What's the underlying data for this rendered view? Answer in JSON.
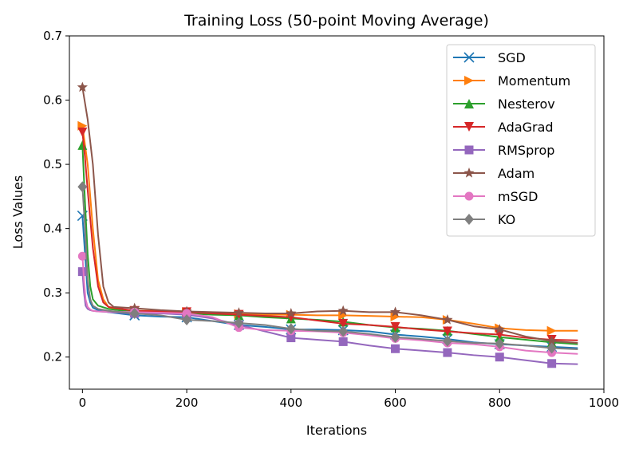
{
  "chart_data": {
    "type": "line",
    "title": "Training Loss (50-point Moving Average)",
    "xlabel": "Iterations",
    "ylabel": "Loss Values",
    "xlim": [
      -25,
      1000
    ],
    "ylim": [
      0.15,
      0.7
    ],
    "xticks": [
      0,
      200,
      400,
      600,
      800,
      1000
    ],
    "yticks": [
      0.2,
      0.3,
      0.4,
      0.5,
      0.6,
      0.7
    ],
    "xtick_labels": [
      "0",
      "200",
      "400",
      "600",
      "800",
      "1000"
    ],
    "ytick_labels": [
      "0.2",
      "0.3",
      "0.4",
      "0.5",
      "0.6",
      "0.7"
    ],
    "grid": false,
    "legend_position": "top-right",
    "marker_every": 100,
    "series": [
      {
        "name": "SGD",
        "color": "#1f77b4",
        "marker": "x",
        "x": [
          0,
          5,
          10,
          15,
          20,
          30,
          50,
          100,
          150,
          200,
          250,
          300,
          350,
          400,
          450,
          500,
          550,
          600,
          650,
          700,
          750,
          800,
          850,
          900,
          950
        ],
        "y": [
          0.42,
          0.36,
          0.3,
          0.285,
          0.277,
          0.273,
          0.27,
          0.265,
          0.263,
          0.262,
          0.256,
          0.25,
          0.247,
          0.243,
          0.243,
          0.242,
          0.24,
          0.235,
          0.232,
          0.228,
          0.223,
          0.22,
          0.218,
          0.216,
          0.214
        ]
      },
      {
        "name": "Momentum",
        "color": "#ff7f0e",
        "marker": "triangle-right",
        "x": [
          0,
          10,
          20,
          30,
          40,
          50,
          60,
          100,
          150,
          200,
          250,
          300,
          350,
          400,
          450,
          500,
          550,
          600,
          650,
          700,
          750,
          800,
          850,
          900,
          950
        ],
        "y": [
          0.56,
          0.5,
          0.4,
          0.32,
          0.29,
          0.278,
          0.275,
          0.272,
          0.272,
          0.27,
          0.268,
          0.267,
          0.266,
          0.266,
          0.265,
          0.265,
          0.264,
          0.263,
          0.262,
          0.258,
          0.252,
          0.245,
          0.242,
          0.241,
          0.241
        ]
      },
      {
        "name": "Nesterov",
        "color": "#2ca02c",
        "marker": "triangle-up",
        "x": [
          0,
          5,
          10,
          15,
          20,
          30,
          50,
          100,
          150,
          200,
          250,
          300,
          350,
          400,
          450,
          500,
          550,
          600,
          650,
          700,
          750,
          800,
          850,
          900,
          950
        ],
        "y": [
          0.53,
          0.44,
          0.36,
          0.31,
          0.29,
          0.28,
          0.275,
          0.27,
          0.269,
          0.268,
          0.266,
          0.265,
          0.262,
          0.26,
          0.258,
          0.255,
          0.25,
          0.246,
          0.244,
          0.241,
          0.236,
          0.231,
          0.227,
          0.223,
          0.22
        ]
      },
      {
        "name": "AdaGrad",
        "color": "#d62728",
        "marker": "triangle-down",
        "x": [
          0,
          5,
          10,
          20,
          30,
          40,
          50,
          100,
          150,
          200,
          250,
          300,
          350,
          400,
          450,
          500,
          550,
          600,
          650,
          700,
          750,
          800,
          850,
          900,
          950
        ],
        "y": [
          0.55,
          0.51,
          0.46,
          0.37,
          0.31,
          0.285,
          0.278,
          0.272,
          0.271,
          0.27,
          0.268,
          0.266,
          0.264,
          0.262,
          0.257,
          0.252,
          0.25,
          0.247,
          0.243,
          0.24,
          0.237,
          0.235,
          0.23,
          0.227,
          0.226
        ]
      },
      {
        "name": "RMSprop",
        "color": "#9467bd",
        "marker": "square",
        "x": [
          0,
          3,
          6,
          10,
          15,
          20,
          30,
          100,
          150,
          200,
          250,
          300,
          350,
          400,
          450,
          500,
          550,
          600,
          650,
          700,
          750,
          800,
          850,
          900,
          950
        ],
        "y": [
          0.333,
          0.3,
          0.28,
          0.275,
          0.273,
          0.272,
          0.271,
          0.268,
          0.268,
          0.266,
          0.26,
          0.25,
          0.24,
          0.23,
          0.227,
          0.224,
          0.218,
          0.213,
          0.21,
          0.207,
          0.203,
          0.2,
          0.195,
          0.19,
          0.189
        ]
      },
      {
        "name": "Adam",
        "color": "#8c564b",
        "marker": "star",
        "x": [
          0,
          10,
          20,
          30,
          40,
          50,
          60,
          100,
          150,
          200,
          250,
          300,
          350,
          400,
          450,
          500,
          550,
          600,
          650,
          700,
          750,
          800,
          850,
          900,
          950
        ],
        "y": [
          0.62,
          0.57,
          0.5,
          0.39,
          0.31,
          0.285,
          0.278,
          0.276,
          0.273,
          0.271,
          0.27,
          0.269,
          0.268,
          0.268,
          0.271,
          0.272,
          0.27,
          0.27,
          0.265,
          0.258,
          0.248,
          0.243,
          0.232,
          0.225,
          0.222
        ]
      },
      {
        "name": "mSGD",
        "color": "#e377c2",
        "marker": "circle",
        "x": [
          0,
          3,
          6,
          10,
          15,
          20,
          30,
          100,
          150,
          200,
          250,
          300,
          350,
          400,
          450,
          500,
          550,
          600,
          650,
          700,
          750,
          800,
          850,
          900,
          950
        ],
        "y": [
          0.357,
          0.32,
          0.29,
          0.278,
          0.274,
          0.272,
          0.271,
          0.27,
          0.269,
          0.268,
          0.262,
          0.246,
          0.242,
          0.241,
          0.24,
          0.238,
          0.234,
          0.229,
          0.226,
          0.222,
          0.22,
          0.216,
          0.21,
          0.207,
          0.205
        ]
      },
      {
        "name": "KO",
        "color": "#7f7f7f",
        "marker": "diamond",
        "x": [
          0,
          5,
          10,
          15,
          20,
          30,
          50,
          100,
          150,
          200,
          250,
          300,
          350,
          400,
          450,
          500,
          550,
          600,
          650,
          700,
          750,
          800,
          850,
          900,
          950
        ],
        "y": [
          0.465,
          0.4,
          0.32,
          0.29,
          0.28,
          0.275,
          0.272,
          0.268,
          0.265,
          0.258,
          0.256,
          0.253,
          0.25,
          0.244,
          0.241,
          0.24,
          0.236,
          0.231,
          0.228,
          0.225,
          0.222,
          0.221,
          0.218,
          0.214,
          0.212
        ]
      }
    ]
  }
}
